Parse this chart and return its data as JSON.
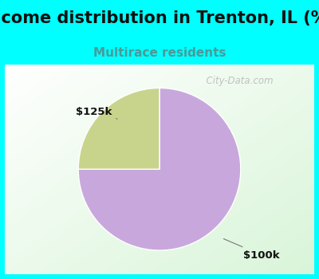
{
  "title": "Income distribution in Trenton, IL (%)",
  "subtitle": "Multirace residents",
  "title_bg_color": "#00FFFF",
  "chart_bg_left": "#d4edd4",
  "chart_bg_right": "#f0f8f0",
  "slices": [
    {
      "label": "$100k",
      "value": 75,
      "color": "#C8A8DC"
    },
    {
      "label": "$125k",
      "value": 25,
      "color": "#C8D48C"
    }
  ],
  "watermark": "City-Data.com",
  "title_fontsize": 15,
  "subtitle_fontsize": 11,
  "subtitle_color": "#4a9a9a",
  "label_fontsize": 9.5,
  "startangle": 90,
  "border_width": 6
}
